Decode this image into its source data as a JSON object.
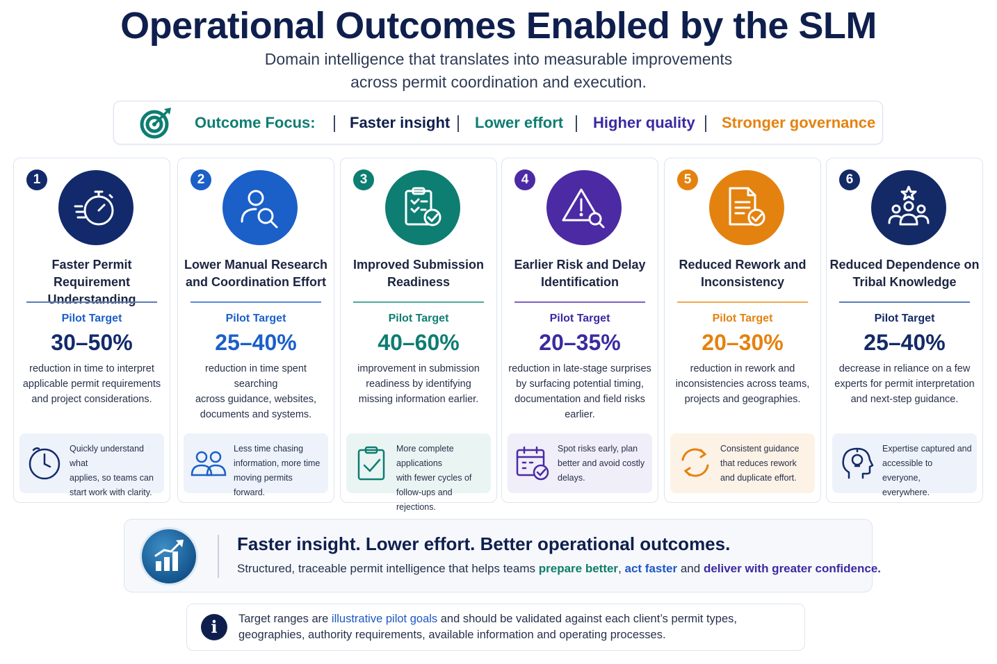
{
  "title": "Operational Outcomes Enabled by the SLM",
  "subtitle_line1": "Domain intelligence that translates into measurable improvements",
  "subtitle_line2": "across permit coordination and execution.",
  "focus": {
    "label": "Outcome Focus:",
    "items": [
      "Faster insight",
      "Lower effort",
      "Higher quality",
      "Stronger governance"
    ]
  },
  "cards": [
    {
      "number": "1",
      "title_line1": "Faster Permit Requirement",
      "title_line2": "Understanding",
      "pilot_label": "Pilot Target",
      "percent": "30–50%",
      "desc_lines": [
        "reduction in time to interpret",
        "applicable permit requirements",
        "and project considerations."
      ],
      "callout_lines": [
        "Quickly understand what",
        "applies, so teams can",
        "start work with clarity."
      ],
      "accent": "#122a6b",
      "icon": "stopwatch-icon",
      "callout_icon": "clock-icon"
    },
    {
      "number": "2",
      "title_line1": "Lower Manual Research",
      "title_line2": "and Coordination Effort",
      "pilot_label": "Pilot Target",
      "percent": "25–40%",
      "desc_lines": [
        "reduction in time spent searching",
        "across guidance, websites,",
        "documents and systems."
      ],
      "callout_lines": [
        "Less time chasing",
        "information, more time",
        "moving permits forward."
      ],
      "accent": "#1b5fc9",
      "icon": "user-search-icon",
      "callout_icon": "people-icon"
    },
    {
      "number": "3",
      "title_line1": "Improved Submission",
      "title_line2": "Readiness",
      "pilot_label": "Pilot Target",
      "percent": "40–60%",
      "desc_lines": [
        "improvement in submission",
        "readiness by identifying",
        "missing information earlier."
      ],
      "callout_lines": [
        "More complete applications",
        "with fewer cycles of",
        "follow-ups and rejections."
      ],
      "accent": "#0e7d72",
      "icon": "clipboard-check-icon",
      "callout_icon": "clipboard-icon"
    },
    {
      "number": "4",
      "title_line1": "Earlier Risk and Delay",
      "title_line2": "Identification",
      "pilot_label": "Pilot Target",
      "percent": "20–35%",
      "desc_lines": [
        "reduction in late-stage surprises",
        "by surfacing potential timing,",
        "documentation and field risks",
        "earlier."
      ],
      "callout_lines": [
        "Spot risks early, plan",
        "better and avoid costly",
        "delays."
      ],
      "accent": "#4b2aa3",
      "icon": "warning-search-icon",
      "callout_icon": "calendar-icon"
    },
    {
      "number": "5",
      "title_line1": "Reduced Rework and",
      "title_line2": "Inconsistency",
      "pilot_label": "Pilot Target",
      "percent": "20–30%",
      "desc_lines": [
        "reduction in rework and",
        "inconsistencies across teams,",
        "projects and geographies."
      ],
      "callout_lines": [
        "Consistent guidance",
        "that reduces rework",
        "and duplicate effort."
      ],
      "accent": "#e4820f",
      "icon": "document-check-icon",
      "callout_icon": "refresh-icon"
    },
    {
      "number": "6",
      "title_line1": "Reduced Dependence on",
      "title_line2": "Tribal Knowledge",
      "pilot_label": "Pilot Target",
      "percent": "25–40%",
      "desc_lines": [
        "decrease in reliance on a few",
        "experts for permit interpretation",
        "and next-step guidance."
      ],
      "callout_lines": [
        "Expertise captured and",
        "accessible to everyone,",
        "everywhere."
      ],
      "accent": "#132a66",
      "icon": "team-star-icon",
      "callout_icon": "head-bulb-icon"
    }
  ],
  "banner": {
    "title": "Faster insight. Lower effort. Better operational outcomes.",
    "text_start": "Structured, traceable permit intelligence that helps teams ",
    "hl1": "prepare better",
    "sep1": ", ",
    "hl2": "act faster",
    "sep2": " and ",
    "hl3": "deliver with greater confidence.",
    "icon": "growth-chart-icon"
  },
  "note": {
    "icon_text": "i",
    "line1_start": "Target ranges are ",
    "line1_hl": "illustrative pilot goals",
    "line1_end": " and should be validated against each client’s permit types,",
    "line2": "geographies, authority requirements, available information and operating processes."
  },
  "colors": {
    "navy": "#0f1f4d",
    "teal": "#0f7d69",
    "blue": "#1d57c5",
    "purple": "#3a2aa0",
    "orange": "#e4820f"
  }
}
